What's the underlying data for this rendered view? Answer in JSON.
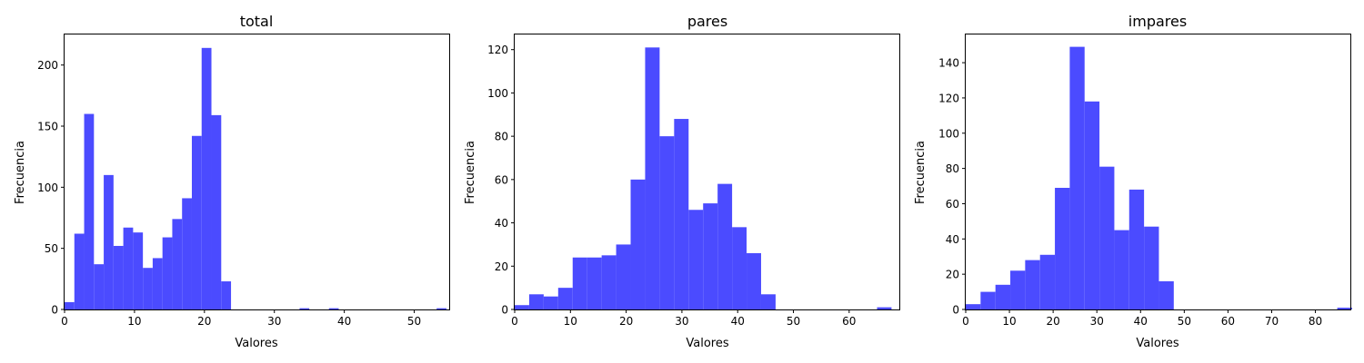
{
  "chart_data": [
    {
      "type": "bar",
      "title": "total",
      "xlabel": "Valores",
      "ylabel": "Frecuencia",
      "xlim": [
        0,
        55
      ],
      "ylim": [
        0,
        225
      ],
      "xticks": [
        0,
        10,
        20,
        30,
        40,
        50
      ],
      "yticks": [
        0,
        50,
        100,
        150,
        200
      ],
      "bar_color": "#4b4bff",
      "bin_width": 1.4,
      "bin_start": 0,
      "values": [
        6,
        62,
        160,
        37,
        110,
        52,
        67,
        63,
        34,
        42,
        59,
        74,
        91,
        142,
        214,
        159,
        23,
        0,
        0,
        0,
        0,
        0,
        0,
        0,
        1,
        0,
        0,
        1,
        0,
        0,
        0,
        0,
        0,
        0,
        0,
        0,
        0,
        0,
        1
      ]
    },
    {
      "type": "bar",
      "title": "pares",
      "xlabel": "Valores",
      "ylabel": "Frecuencia",
      "xlim": [
        0,
        69
      ],
      "ylim": [
        0,
        127
      ],
      "xticks": [
        0,
        10,
        20,
        30,
        40,
        50,
        60
      ],
      "yticks": [
        0,
        20,
        40,
        60,
        80,
        100,
        120
      ],
      "bar_color": "#4b4bff",
      "bin_width": 2.6,
      "bin_start": 0,
      "values": [
        2,
        7,
        6,
        10,
        24,
        24,
        25,
        30,
        60,
        121,
        80,
        88,
        46,
        49,
        58,
        38,
        26,
        7,
        0,
        0,
        0,
        0,
        0,
        0,
        0,
        1
      ]
    },
    {
      "type": "bar",
      "title": "impares",
      "xlabel": "Valores",
      "ylabel": "Frecuencia",
      "xlim": [
        0,
        88
      ],
      "ylim": [
        0,
        156
      ],
      "xticks": [
        0,
        10,
        20,
        30,
        40,
        50,
        60,
        70,
        80
      ],
      "yticks": [
        0,
        20,
        40,
        60,
        80,
        100,
        120,
        140
      ],
      "bar_color": "#4b4bff",
      "bin_width": 3.4,
      "bin_start": 0,
      "values": [
        3,
        10,
        14,
        22,
        28,
        31,
        69,
        149,
        118,
        81,
        45,
        68,
        47,
        16,
        0,
        0,
        0,
        0,
        0,
        0,
        0,
        0,
        0,
        0,
        0,
        1
      ]
    }
  ]
}
